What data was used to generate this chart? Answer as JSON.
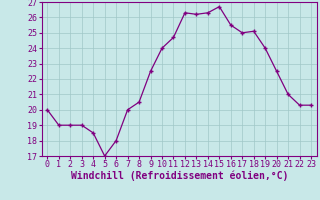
{
  "x": [
    0,
    1,
    2,
    3,
    4,
    5,
    6,
    7,
    8,
    9,
    10,
    11,
    12,
    13,
    14,
    15,
    16,
    17,
    18,
    19,
    20,
    21,
    22,
    23
  ],
  "y": [
    20,
    19,
    19,
    19,
    18.5,
    17,
    18,
    20,
    20.5,
    22.5,
    24,
    24.7,
    26.3,
    26.2,
    26.3,
    26.7,
    25.5,
    25,
    25.1,
    24,
    22.5,
    21,
    20.3,
    20.3
  ],
  "line_color": "#800080",
  "marker": "+",
  "bg_color": "#c8e8e8",
  "grid_color": "#a0c8c8",
  "xlabel": "Windchill (Refroidissement éolien,°C)",
  "ylim": [
    17,
    27
  ],
  "yticks": [
    17,
    18,
    19,
    20,
    21,
    22,
    23,
    24,
    25,
    26,
    27
  ],
  "xticks": [
    0,
    1,
    2,
    3,
    4,
    5,
    6,
    7,
    8,
    9,
    10,
    11,
    12,
    13,
    14,
    15,
    16,
    17,
    18,
    19,
    20,
    21,
    22,
    23
  ],
  "xtick_labels": [
    "0",
    "1",
    "2",
    "3",
    "4",
    "5",
    "6",
    "7",
    "8",
    "9",
    "10",
    "11",
    "12",
    "13",
    "14",
    "15",
    "16",
    "17",
    "18",
    "19",
    "20",
    "21",
    "22",
    "23"
  ],
  "tick_fontsize": 6,
  "xlabel_fontsize": 7
}
